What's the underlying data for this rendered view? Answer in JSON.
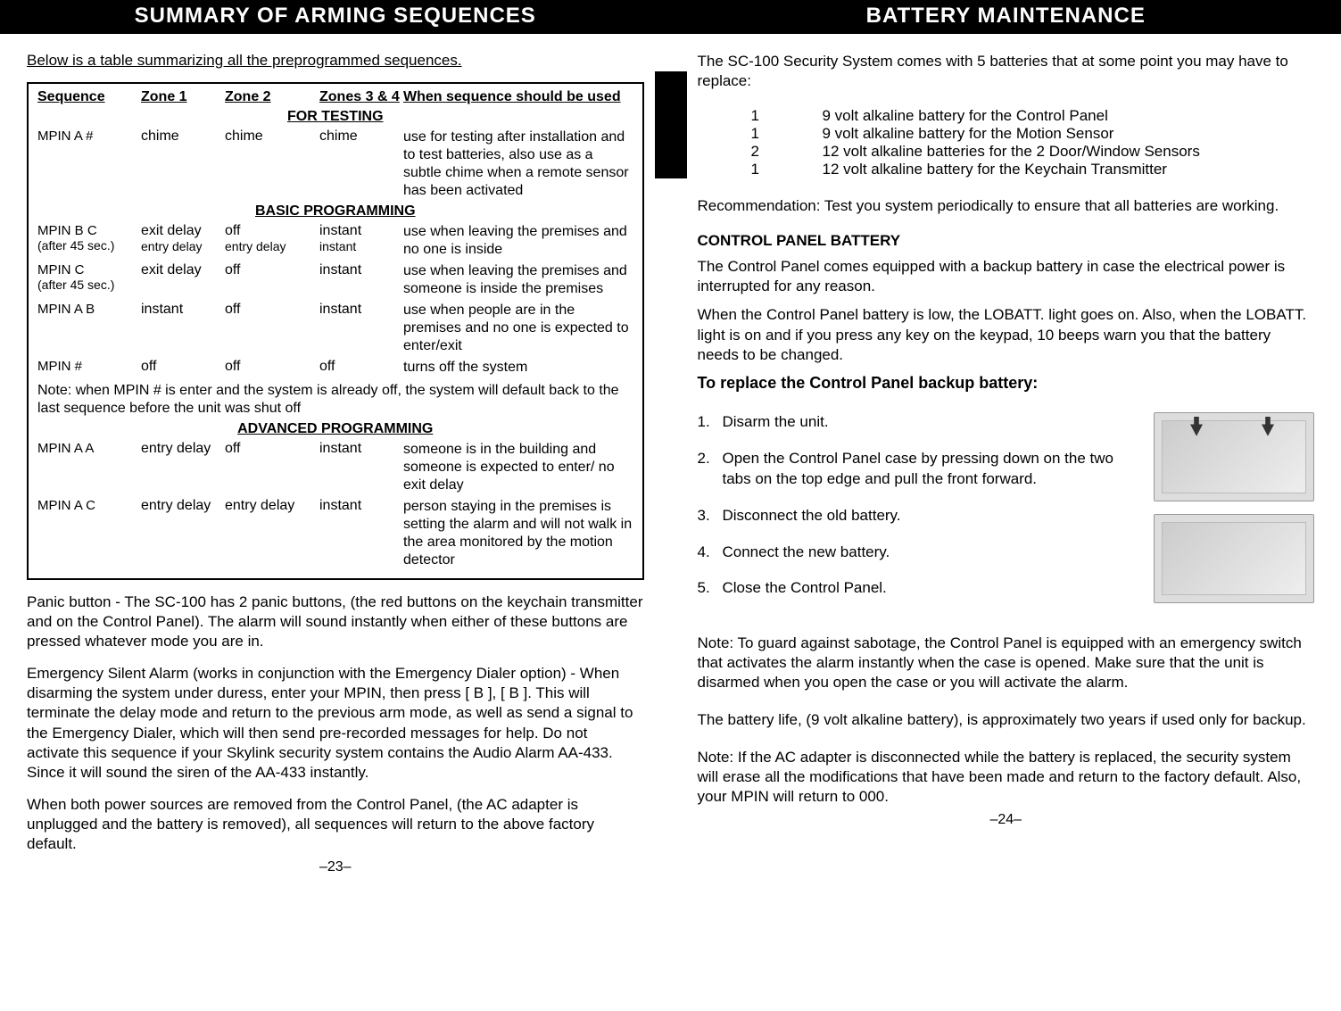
{
  "left": {
    "header": "SUMMARY OF ARMING SEQUENCES",
    "intro": "Below is a table summarizing all the preprogrammed sequences.",
    "cols": {
      "seq": "Sequence",
      "z1": "Zone 1",
      "z2": "Zone 2",
      "z34": "Zones 3 & 4",
      "when": "When sequence should be used"
    },
    "sect_test": "FOR TESTING",
    "r_test": {
      "seq": "MPIN A #",
      "z1": "chime",
      "z2": "chime",
      "z34": "chime",
      "when": "use for testing after installation and to test batteries, also use as a subtle chime when a remote sensor has been activated"
    },
    "sect_basic": "BASIC PROGRAMMING",
    "r_bc": {
      "seq": "MPIN B C",
      "seq_sub": "(after 45 sec.)",
      "z1": "exit delay",
      "z1_sub": "entry delay",
      "z2": "off",
      "z2_sub": "entry delay",
      "z34": "instant",
      "z34_sub": "instant",
      "when": "use when leaving the premises and no one is inside"
    },
    "r_c": {
      "seq": "MPIN C",
      "seq_sub": "(after 45 sec.)",
      "z1": "exit delay",
      "z2": "off",
      "z34": "instant",
      "when": "use when leaving the premises and someone is inside the premises"
    },
    "r_ab": {
      "seq": "MPIN A B",
      "z1": "instant",
      "z2": "off",
      "z34": "instant",
      "when": "use when people are in the premises and no one is expected to enter/exit"
    },
    "r_off": {
      "seq": "MPIN #",
      "z1": "off",
      "z2": "off",
      "z34": "off",
      "when": "turns off the system"
    },
    "note": "Note:  when MPIN # is enter and the system is already off, the system will default back to the last sequence before the unit was shut off",
    "sect_adv": "ADVANCED PROGRAMMING",
    "r_aa": {
      "seq": "MPIN A A",
      "z1": "entry delay",
      "z2": "off",
      "z34": "instant",
      "when": "someone is in the building and someone is expected to enter/ no exit delay"
    },
    "r_ac": {
      "seq": "MPIN A C",
      "z1": "entry delay",
      "z2": "entry delay",
      "z34": "instant",
      "when": "person staying in the premises is setting the alarm and will not walk in the area monitored by the motion detector"
    },
    "p1": "Panic button - The SC-100 has 2 panic buttons, (the red buttons on the keychain transmitter and on the Control Panel). The alarm will sound instantly when either of these buttons are pressed whatever mode you are in.",
    "p2": "Emergency Silent Alarm (works in conjunction with the Emergency Dialer option) - When disarming the system under duress, enter your MPIN, then press [ B ], [ B ]. This will terminate the delay mode and return to the previous arm mode, as well as send a signal to the Emergency Dialer, which will then send pre-recorded messages for help. Do not activate this sequence if your Skylink security system contains the Audio Alarm AA-433. Since it will sound the siren of the AA-433 instantly.",
    "p3": "When both power sources are removed from the Control Panel, (the AC adapter is unplugged and the battery is removed), all sequences will return to the above factory default.",
    "pagenum": "–23–"
  },
  "right": {
    "header": "BATTERY MAINTENANCE",
    "intro": "The SC-100 Security System comes with 5 batteries that at some point you may have to replace:",
    "blist": [
      {
        "q": "1",
        "t": "9 volt alkaline battery for the Control Panel"
      },
      {
        "q": "1",
        "t": "9 volt alkaline battery for the Motion Sensor"
      },
      {
        "q": "2",
        "t": "12 volt alkaline batteries for the 2 Door/Window Sensors"
      },
      {
        "q": "1",
        "t": "12 volt alkaline battery for the Keychain Transmitter"
      }
    ],
    "rec": "Recommendation: Test you system periodically to ensure that all batteries are working.",
    "cp_head": "CONTROL PANEL BATTERY",
    "cp1": "The Control Panel comes equipped with a backup battery in case the electrical power is interrupted for any reason.",
    "cp2": "When the Control Panel battery is low, the LOBATT. light goes on. Also, when the LOBATT. light is on and if you press any key on the keypad, 10 beeps warn you that the battery needs to be changed.",
    "replace_head": "To replace the Control Panel backup battery:",
    "steps": [
      {
        "n": "1.",
        "t": "Disarm the unit."
      },
      {
        "n": "2.",
        "t": "Open the Control Panel case by pressing down on the two tabs on the top edge and pull the front forward."
      },
      {
        "n": "3.",
        "t": "Disconnect the old battery."
      },
      {
        "n": "4.",
        "t": "Connect the new battery."
      },
      {
        "n": "5.",
        "t": "Close the Control Panel."
      }
    ],
    "n1": "Note: To guard against sabotage, the Control Panel is equipped with an emergency switch that activates the alarm instantly when the case is opened. Make sure that the unit is disarmed when you open the case or you will activate the alarm.",
    "n2": "The battery life, (9 volt alkaline battery), is approximately two years if used only for backup.",
    "n3": "Note: If the AC adapter is disconnected while the battery is replaced, the security system will erase all the modifications that have been made and return to the factory default. Also, your MPIN will return to 000.",
    "pagenum": "–24–"
  }
}
